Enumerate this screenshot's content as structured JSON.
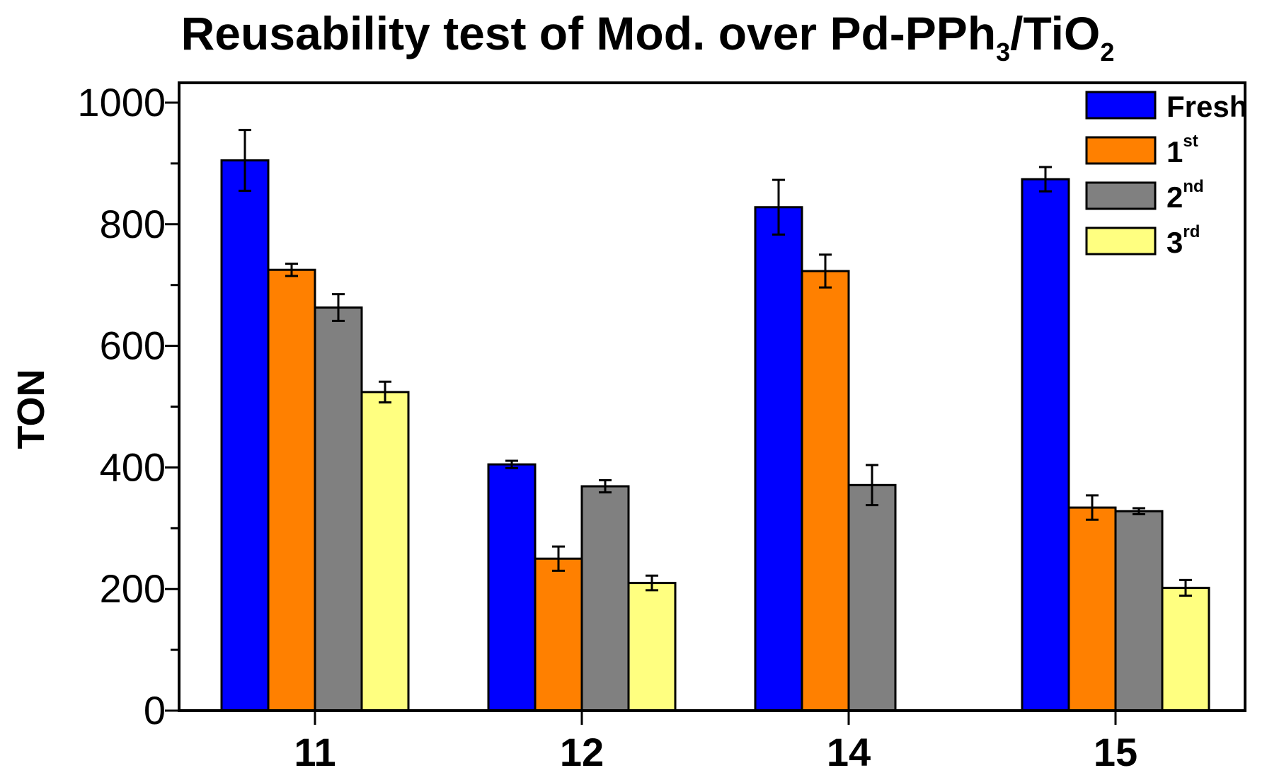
{
  "chart_data": {
    "type": "bar",
    "title": {
      "prefix": "Reusability test of Mod. over Pd-PPh",
      "sub1": "3",
      "middle": "/TiO",
      "sub2": "2"
    },
    "xlabel": "",
    "ylabel": "TON",
    "ylim": [
      0,
      1000
    ],
    "yticks": [
      0,
      200,
      400,
      600,
      800,
      1000
    ],
    "categories": [
      "11",
      "12",
      "14",
      "15"
    ],
    "legend_position": "top-right",
    "series": [
      {
        "name": "Fresh",
        "sup": "",
        "color": "#0000FF",
        "values": [
          905,
          405,
          828,
          874
        ],
        "errors": [
          50,
          6,
          45,
          20
        ]
      },
      {
        "name": "1",
        "sup": "st",
        "color": "#FF8000",
        "values": [
          725,
          250,
          723,
          334
        ],
        "errors": [
          10,
          20,
          27,
          20
        ]
      },
      {
        "name": "2",
        "sup": "nd",
        "color": "#808080",
        "values": [
          663,
          369,
          371,
          328
        ],
        "errors": [
          22,
          10,
          33,
          5
        ]
      },
      {
        "name": "3",
        "sup": "rd",
        "color": "#FFFF80",
        "values": [
          524,
          210,
          0,
          202
        ],
        "errors": [
          17,
          12,
          0,
          13
        ]
      }
    ]
  }
}
